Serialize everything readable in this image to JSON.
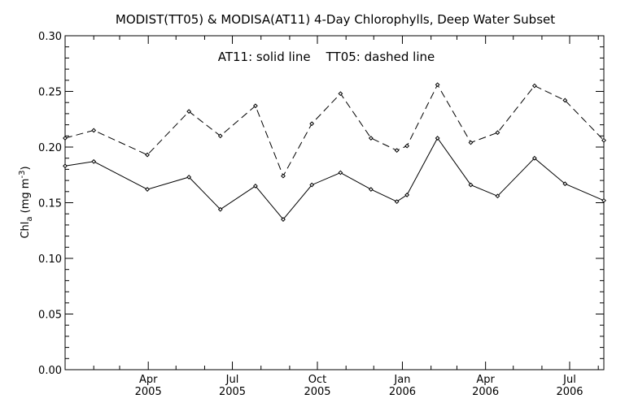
{
  "chart_data": {
    "type": "line",
    "title": "MODIST(TT05) & MODISA(AT11) 4-Day Chlorophylls, Deep Water Subset",
    "annotation": "AT11: solid line    TT05: dashed line",
    "ylabel_parts": {
      "main": "Chl",
      "sub": "a",
      "unit_open": " (mg m",
      "unit_sup": "-3",
      "unit_close": ")"
    },
    "ylim": [
      0.0,
      0.3
    ],
    "yticks": [
      "0.00",
      "0.05",
      "0.10",
      "0.15",
      "0.20",
      "0.25",
      "0.30"
    ],
    "yticks_values": [
      0.0,
      0.05,
      0.1,
      0.15,
      0.2,
      0.25,
      0.3
    ],
    "xlim": [
      "2005-01-01",
      "2006-08-07"
    ],
    "xticks": [
      {
        "date": "2005-04-01",
        "month": "Apr",
        "year": "2005"
      },
      {
        "date": "2005-07-01",
        "month": "Jul",
        "year": "2005"
      },
      {
        "date": "2005-10-01",
        "month": "Oct",
        "year": "2005"
      },
      {
        "date": "2006-01-01",
        "month": "Jan",
        "year": "2006"
      },
      {
        "date": "2006-04-01",
        "month": "Apr",
        "year": "2006"
      },
      {
        "date": "2006-07-01",
        "month": "Jul",
        "year": "2006"
      }
    ],
    "grid": false,
    "series": [
      {
        "style": "solid",
        "x": [
          "2005-01-01",
          "2005-02-01",
          "2005-03-31",
          "2005-05-15",
          "2005-06-18",
          "2005-07-26",
          "2005-08-25",
          "2005-09-25",
          "2005-10-26",
          "2005-11-28",
          "2005-12-26",
          "2006-01-06",
          "2006-02-08",
          "2006-03-16",
          "2006-04-14",
          "2006-05-24",
          "2006-06-26",
          "2006-08-07"
        ],
        "values": [
          0.183,
          0.187,
          0.162,
          0.173,
          0.144,
          0.165,
          0.135,
          0.166,
          0.177,
          0.162,
          0.151,
          0.157,
          0.208,
          0.166,
          0.156,
          0.19,
          0.167,
          0.152
        ]
      },
      {
        "style": "dashed",
        "x": [
          "2005-01-01",
          "2005-02-01",
          "2005-03-31",
          "2005-05-15",
          "2005-06-18",
          "2005-07-26",
          "2005-08-25",
          "2005-09-25",
          "2005-10-26",
          "2005-11-28",
          "2005-12-26",
          "2006-01-06",
          "2006-02-08",
          "2006-03-16",
          "2006-04-14",
          "2006-05-24",
          "2006-06-26",
          "2006-08-07"
        ],
        "values": [
          0.208,
          0.215,
          0.193,
          0.232,
          0.21,
          0.237,
          0.174,
          0.221,
          0.248,
          0.208,
          0.197,
          0.201,
          0.256,
          0.204,
          0.213,
          0.255,
          0.242,
          0.206
        ]
      }
    ]
  }
}
